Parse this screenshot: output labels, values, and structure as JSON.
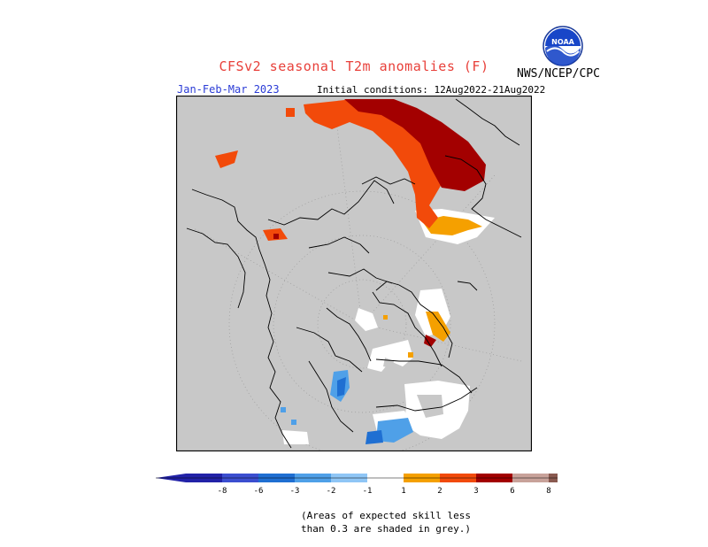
{
  "title": "CFSv2 seasonal T2m anomalies (F)",
  "agency": "NWS/NCEP/CPC",
  "logo_text": "NOAA",
  "season": "Jan-Feb-Mar 2023",
  "initial_conditions": "Initial conditions: 12Aug2022-21Aug2022",
  "legend": {
    "unit": "F",
    "bins": [
      {
        "label": "-8",
        "color": "#2222a8"
      },
      {
        "label": "-6",
        "color": "#3b4ed0"
      },
      {
        "label": "-3",
        "color": "#1f6fd2"
      },
      {
        "label": "-2",
        "color": "#4fa0e8"
      },
      {
        "label": "-1",
        "color": "#8fc6f6"
      },
      {
        "label": "",
        "color": "#ffffff"
      },
      {
        "label": "1",
        "color": "#f5a000"
      },
      {
        "label": "2",
        "color": "#f24a0a"
      },
      {
        "label": "3",
        "color": "#a30000"
      },
      {
        "label": "6",
        "color": "#c8a29a"
      },
      {
        "label": "8",
        "color": "#8a5a50"
      }
    ],
    "tick_labels": [
      "-8",
      "-6",
      "-3",
      "-2",
      "-1",
      "1",
      "2",
      "3",
      "6",
      "8"
    ]
  },
  "note": {
    "line1": "(Areas of expected skill less",
    "line2": "than 0.3 are shaded in grey.)"
  },
  "colors": {
    "low_skill_grey": "#c8c8c8",
    "coast": "#000000",
    "title_red": "#e8403a",
    "season_blue": "#2a3bd6"
  }
}
